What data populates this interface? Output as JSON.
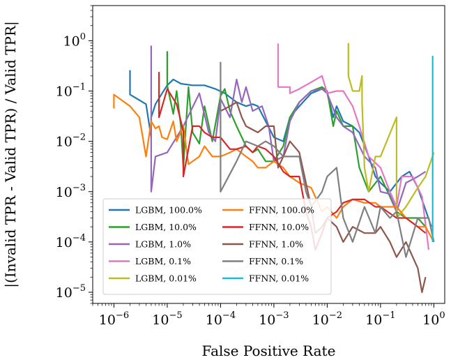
{
  "chart_data": {
    "type": "line",
    "xlabel": "False Positive Rate",
    "ylabel": "|(Invalid TPR - Valid TPR) / Valid TPR|",
    "xscale": "log",
    "yscale": "log",
    "xlim": [
      4e-07,
      1.6
    ],
    "ylim": [
      6e-06,
      5
    ],
    "grid": false,
    "legend_location": "lower-left",
    "legend_columns": 2,
    "xticks": [
      {
        "base": "10",
        "exp": "−6",
        "value": 1e-06
      },
      {
        "base": "10",
        "exp": "−5",
        "value": 1e-05
      },
      {
        "base": "10",
        "exp": "−4",
        "value": 0.0001
      },
      {
        "base": "10",
        "exp": "−3",
        "value": 0.001
      },
      {
        "base": "10",
        "exp": "−2",
        "value": 0.01
      },
      {
        "base": "10",
        "exp": "−1",
        "value": 0.1
      },
      {
        "base": "10",
        "exp": "0",
        "value": 1
      }
    ],
    "yticks": [
      {
        "base": "10",
        "exp": "0",
        "value": 1
      },
      {
        "base": "10",
        "exp": "−1",
        "value": 0.1
      },
      {
        "base": "10",
        "exp": "−2",
        "value": 0.01
      },
      {
        "base": "10",
        "exp": "−3",
        "value": 0.001
      },
      {
        "base": "10",
        "exp": "−4",
        "value": 0.0001
      },
      {
        "base": "10",
        "exp": "−5",
        "value": 1e-05
      }
    ],
    "series": [
      {
        "name": "LGBM, 100.0%",
        "color": "#1f77b4",
        "points": [
          [
            2e-06,
            0.26
          ],
          [
            2e-06,
            0.085
          ],
          [
            4e-06,
            0.055
          ],
          [
            5e-06,
            0.012
          ],
          [
            5e-06,
            0.03
          ],
          [
            6e-06,
            0.055
          ],
          [
            8e-06,
            0.09
          ],
          [
            1e-05,
            0.13
          ],
          [
            1.3e-05,
            0.17
          ],
          [
            1.8e-05,
            0.14
          ],
          [
            3e-05,
            0.13
          ],
          [
            5e-05,
            0.13
          ],
          [
            8e-05,
            0.11
          ],
          [
            0.00012,
            0.09
          ],
          [
            0.0002,
            0.06
          ],
          [
            0.0003,
            0.05
          ],
          [
            0.0004,
            0.055
          ],
          [
            0.0005,
            0.05
          ],
          [
            0.0007,
            0.025
          ],
          [
            0.001,
            0.012
          ],
          [
            0.0015,
            0.01
          ],
          [
            0.002,
            0.03
          ],
          [
            0.003,
            0.05
          ],
          [
            0.005,
            0.09
          ],
          [
            0.008,
            0.11
          ],
          [
            0.01,
            0.09
          ],
          [
            0.013,
            0.03
          ],
          [
            0.015,
            0.05
          ],
          [
            0.02,
            0.025
          ],
          [
            0.03,
            0.02
          ],
          [
            0.04,
            0.015
          ],
          [
            0.06,
            0.005
          ],
          [
            0.08,
            0.002
          ],
          [
            0.1,
            0.0015
          ],
          [
            0.15,
            0.001
          ],
          [
            0.25,
            0.002
          ],
          [
            0.35,
            0.0025
          ],
          [
            0.5,
            0.0012
          ],
          [
            0.9,
            0.0002
          ]
        ]
      },
      {
        "name": "LGBM, 10.0%",
        "color": "#2ca02c",
        "points": [
          [
            1e-05,
            0.62
          ],
          [
            1e-05,
            0.13
          ],
          [
            1.3e-05,
            0.035
          ],
          [
            1.5e-05,
            0.1
          ],
          [
            1.8e-05,
            0.02
          ],
          [
            2e-05,
            0.003
          ],
          [
            2.2e-05,
            0.015
          ],
          [
            2.5e-05,
            0.12
          ],
          [
            3e-05,
            0.015
          ],
          [
            4e-05,
            0.009
          ],
          [
            5e-05,
            0.05
          ],
          [
            7e-05,
            0.01
          ],
          [
            0.0001,
            0.08
          ],
          [
            0.00012,
            0.11
          ],
          [
            0.00015,
            0.04
          ],
          [
            0.0002,
            0.02
          ],
          [
            0.0003,
            0.008
          ],
          [
            0.0004,
            0.006
          ],
          [
            0.0005,
            0.007
          ],
          [
            0.0007,
            0.004
          ],
          [
            0.001,
            0.004
          ],
          [
            0.0015,
            0.008
          ],
          [
            0.002,
            0.03
          ],
          [
            0.003,
            0.06
          ],
          [
            0.005,
            0.1
          ],
          [
            0.008,
            0.12
          ],
          [
            0.01,
            0.1
          ],
          [
            0.013,
            0.02
          ],
          [
            0.015,
            0.04
          ],
          [
            0.02,
            0.02
          ],
          [
            0.03,
            0.02
          ],
          [
            0.04,
            0.003
          ],
          [
            0.06,
            0.001
          ],
          [
            0.1,
            0.002
          ],
          [
            0.15,
            0.0008
          ],
          [
            0.2,
            0.0004
          ],
          [
            0.3,
            0.0003
          ],
          [
            0.5,
            0.0003
          ],
          [
            0.7,
            0.0002
          ]
        ]
      },
      {
        "name": "LGBM, 1.0%",
        "color": "#9467bd",
        "points": [
          [
            5e-06,
            0.8
          ],
          [
            5e-06,
            0.001
          ],
          [
            6e-06,
            0.005
          ],
          [
            1e-05,
            0.006
          ],
          [
            2e-05,
            0.02
          ],
          [
            4e-05,
            0.09
          ],
          [
            6e-05,
            0.015
          ],
          [
            8e-05,
            0.01
          ],
          [
            0.0001,
            0.07
          ],
          [
            0.00015,
            0.03
          ],
          [
            0.0002,
            0.17
          ],
          [
            0.00025,
            0.06
          ],
          [
            0.0003,
            0.12
          ],
          [
            0.0004,
            0.04
          ],
          [
            0.0006,
            0.05
          ],
          [
            0.0008,
            0.02
          ],
          [
            0.001,
            0.004
          ],
          [
            0.0015,
            0.005
          ],
          [
            0.002,
            0.025
          ],
          [
            0.003,
            0.06
          ],
          [
            0.005,
            0.1
          ],
          [
            0.008,
            0.11
          ],
          [
            0.01,
            0.09
          ],
          [
            0.015,
            0.03
          ],
          [
            0.02,
            0.02
          ],
          [
            0.03,
            0.015
          ],
          [
            0.05,
            0.005
          ],
          [
            0.08,
            0.003
          ],
          [
            0.1,
            0.001
          ],
          [
            0.15,
            0.0009
          ],
          [
            0.2,
            0.0004
          ],
          [
            0.3,
            0.0015
          ],
          [
            0.5,
            0.002
          ],
          [
            0.7,
            0.0025
          ]
        ]
      },
      {
        "name": "LGBM, 0.1%",
        "color": "#e377c2",
        "points": [
          [
            0.0012,
            0.88
          ],
          [
            0.0012,
            0.12
          ],
          [
            0.002,
            0.12
          ],
          [
            0.002,
            0.09
          ],
          [
            0.003,
            0.11
          ],
          [
            0.005,
            0.15
          ],
          [
            0.008,
            0.2
          ],
          [
            0.01,
            0.09
          ],
          [
            0.015,
            0.1
          ],
          [
            0.02,
            0.1
          ],
          [
            0.03,
            0.05
          ],
          [
            0.04,
            0.02
          ],
          [
            0.06,
            0.005
          ],
          [
            0.1,
            0.003
          ],
          [
            0.15,
            0.001
          ],
          [
            0.2,
            0.0005
          ],
          [
            0.25,
            0.002
          ],
          [
            0.4,
            0.002
          ],
          [
            0.6,
            0.0008
          ],
          [
            0.8,
            7e-05
          ]
        ]
      },
      {
        "name": "LGBM, 0.01%",
        "color": "#bcbd22",
        "points": [
          [
            0.025,
            0.9
          ],
          [
            0.025,
            0.2
          ],
          [
            0.03,
            0.1
          ],
          [
            0.04,
            0.1
          ],
          [
            0.045,
            0.2
          ],
          [
            0.045,
            0.06
          ],
          [
            0.05,
            0.003
          ],
          [
            0.06,
            0.001
          ],
          [
            0.08,
            0.005
          ],
          [
            0.1,
            0.005
          ],
          [
            0.2,
            0.03
          ],
          [
            0.2,
            0.0003
          ],
          [
            0.3,
            0.0005
          ],
          [
            0.5,
            0.0012
          ],
          [
            0.7,
            0.002
          ],
          [
            1.0,
            0.006
          ]
        ]
      },
      {
        "name": "FFNN, 100.0%",
        "color": "#ff7f0e",
        "points": [
          [
            1e-06,
            0.045
          ],
          [
            1e-06,
            0.085
          ],
          [
            2e-06,
            0.05
          ],
          [
            3e-06,
            0.03
          ],
          [
            4e-06,
            0.005
          ],
          [
            5e-06,
            0.025
          ],
          [
            6e-06,
            0.018
          ],
          [
            7e-06,
            0.02
          ],
          [
            8e-06,
            0.012
          ],
          [
            1e-05,
            0.011
          ],
          [
            1.3e-05,
            0.025
          ],
          [
            1.5e-05,
            0.01
          ],
          [
            2e-05,
            0.02
          ],
          [
            2.5e-05,
            0.0035
          ],
          [
            4e-05,
            0.005
          ],
          [
            5e-05,
            0.008
          ],
          [
            7e-05,
            0.005
          ],
          [
            0.0001,
            0.005
          ],
          [
            0.00015,
            0.006
          ],
          [
            0.0002,
            0.007
          ],
          [
            0.0003,
            0.005
          ],
          [
            0.0004,
            0.004
          ],
          [
            0.0005,
            0.003
          ],
          [
            0.0007,
            0.003
          ],
          [
            0.001,
            0.004
          ],
          [
            0.0015,
            0.003
          ],
          [
            0.002,
            0.002
          ],
          [
            0.003,
            0.0015
          ],
          [
            0.005,
            0.0012
          ],
          [
            0.008,
            0.0004
          ],
          [
            0.01,
            0.0005
          ],
          [
            0.015,
            0.0003
          ],
          [
            0.02,
            0.0005
          ],
          [
            0.03,
            0.0007
          ],
          [
            0.05,
            0.0006
          ],
          [
            0.08,
            0.0006
          ],
          [
            0.1,
            0.0005
          ],
          [
            0.2,
            0.0005
          ],
          [
            0.3,
            0.0003
          ],
          [
            0.5,
            0.0002
          ],
          [
            0.7,
            0.0002
          ],
          [
            1.0,
            0.0001
          ]
        ]
      },
      {
        "name": "FFNN, 10.0%",
        "color": "#d62728",
        "points": [
          [
            7e-06,
            0.24
          ],
          [
            7e-06,
            0.03
          ],
          [
            1e-05,
            0.11
          ],
          [
            1.5e-05,
            0.055
          ],
          [
            2e-05,
            0.016
          ],
          [
            2e-05,
            0.002
          ],
          [
            3e-05,
            0.02
          ],
          [
            4e-05,
            0.02
          ],
          [
            5e-05,
            0.015
          ],
          [
            7e-05,
            0.012
          ],
          [
            0.0001,
            0.012
          ],
          [
            0.00015,
            0.007
          ],
          [
            0.0002,
            0.007
          ],
          [
            0.0003,
            0.008
          ],
          [
            0.0004,
            0.006
          ],
          [
            0.0005,
            0.008
          ],
          [
            0.0007,
            0.007
          ],
          [
            0.001,
            0.005
          ],
          [
            0.0015,
            0.0025
          ],
          [
            0.002,
            0.002
          ],
          [
            0.003,
            0.002
          ],
          [
            0.004,
            0.0004
          ],
          [
            0.005,
            0.0002
          ],
          [
            0.006,
            7e-05
          ],
          [
            0.008,
            0.00015
          ],
          [
            0.01,
            0.0003
          ],
          [
            0.015,
            0.0004
          ],
          [
            0.02,
            0.0006
          ],
          [
            0.03,
            0.0007
          ],
          [
            0.05,
            0.0007
          ],
          [
            0.08,
            0.0005
          ],
          [
            0.1,
            0.0005
          ],
          [
            0.2,
            0.0003
          ],
          [
            0.3,
            0.0003
          ],
          [
            0.5,
            0.0002
          ],
          [
            0.7,
            0.00015
          ]
        ]
      },
      {
        "name": "FFNN, 1.0%",
        "color": "#8c564b",
        "points": [
          [
            0.0001,
            0.04
          ],
          [
            0.00015,
            0.05
          ],
          [
            0.0002,
            0.06
          ],
          [
            0.00025,
            0.03
          ],
          [
            0.0003,
            0.02
          ],
          [
            0.0005,
            0.015
          ],
          [
            0.0007,
            0.02
          ],
          [
            0.001,
            0.02
          ],
          [
            0.0012,
            0.003
          ],
          [
            0.0015,
            0.005
          ],
          [
            0.002,
            0.01
          ],
          [
            0.003,
            0.006
          ],
          [
            0.005,
            0.0005
          ],
          [
            0.006,
            0.00015
          ],
          [
            0.008,
            0.0002
          ],
          [
            0.01,
            0.0003
          ],
          [
            0.015,
            0.0002
          ],
          [
            0.02,
            0.0001
          ],
          [
            0.03,
            0.0002
          ],
          [
            0.05,
            0.00015
          ],
          [
            0.08,
            0.00015
          ],
          [
            0.1,
            0.0002
          ],
          [
            0.15,
            0.0001
          ],
          [
            0.2,
            5e-05
          ],
          [
            0.3,
            0.0001
          ],
          [
            0.5,
            3e-05
          ],
          [
            0.6,
            1e-05
          ],
          [
            0.7,
            2e-05
          ]
        ]
      },
      {
        "name": "FFNN, 0.1%",
        "color": "#7f7f7f",
        "points": [
          [
            0.0001,
            0.38
          ],
          [
            0.0001,
            0.001
          ],
          [
            0.0002,
            0.004
          ],
          [
            0.0003,
            0.01
          ],
          [
            0.0005,
            0.008
          ],
          [
            0.0007,
            0.01
          ],
          [
            0.001,
            0.008
          ],
          [
            0.0015,
            0.005
          ],
          [
            0.002,
            0.005
          ],
          [
            0.003,
            0.005
          ],
          [
            0.004,
            0.001
          ],
          [
            0.005,
            0.0005
          ],
          [
            0.008,
            0.001
          ],
          [
            0.01,
            0.002
          ],
          [
            0.015,
            0.003
          ],
          [
            0.02,
            0.0003
          ],
          [
            0.03,
            0.0001
          ],
          [
            0.05,
            0.0005
          ],
          [
            0.08,
            0.00015
          ],
          [
            0.1,
            0.0005
          ],
          [
            0.15,
            0.0003
          ],
          [
            0.2,
            0.0004
          ],
          [
            0.3,
            5e-05
          ],
          [
            0.5,
            0.0003
          ],
          [
            0.8,
            0.0003
          ],
          [
            1.0,
            0.0001
          ]
        ]
      },
      {
        "name": "FFNN, 0.01%",
        "color": "#17becf",
        "points": [
          [
            0.95,
            0.5
          ],
          [
            0.95,
            0.0001
          ]
        ]
      }
    ]
  }
}
